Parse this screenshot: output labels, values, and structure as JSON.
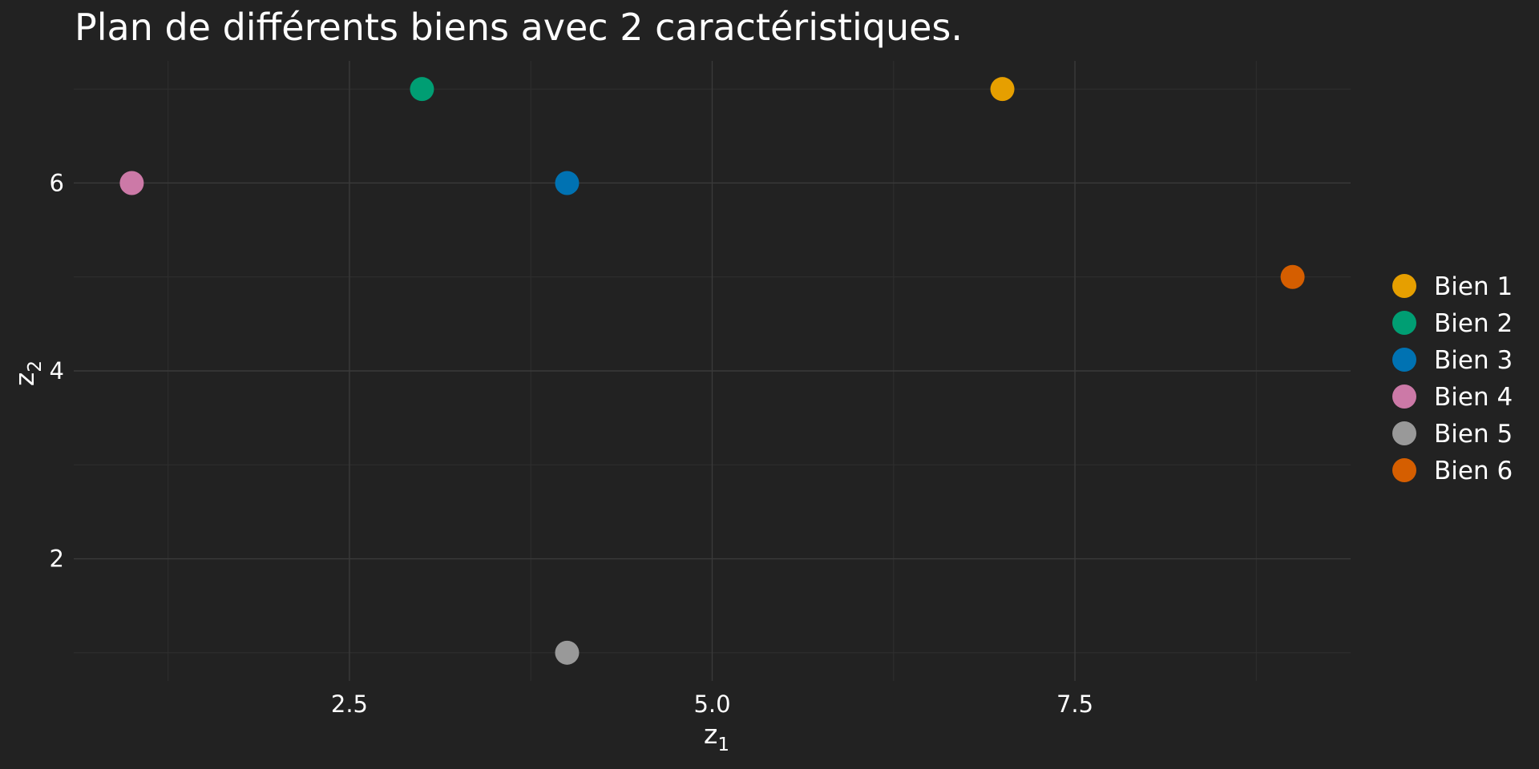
{
  "chart_data": {
    "type": "scatter",
    "title": "Plan de différents biens avec 2 caractéristiques.",
    "xlabel": {
      "base": "z",
      "sub": "1"
    },
    "ylabel": {
      "base": "z",
      "sub": "2"
    },
    "xlim": [
      0.6,
      9.4
    ],
    "ylim": [
      0.7,
      7.3
    ],
    "x_ticks": [
      2.5,
      5.0,
      7.5
    ],
    "x_tick_labels": [
      "2.5",
      "5.0",
      "7.5"
    ],
    "y_ticks": [
      2,
      4,
      6
    ],
    "y_tick_labels": [
      "2",
      "4",
      "6"
    ],
    "x_minor": [
      1.25,
      3.75,
      6.25,
      8.75
    ],
    "y_minor": [
      1,
      3,
      5,
      7
    ],
    "grid": true,
    "legend_position": "right",
    "series": [
      {
        "name": "Bien 1",
        "x": 7,
        "y": 7,
        "color": "#E69F00"
      },
      {
        "name": "Bien 2",
        "x": 3,
        "y": 7,
        "color": "#009E73"
      },
      {
        "name": "Bien 3",
        "x": 4,
        "y": 6,
        "color": "#0072B2"
      },
      {
        "name": "Bien 4",
        "x": 1,
        "y": 6,
        "color": "#CC79A7"
      },
      {
        "name": "Bien 5",
        "x": 4,
        "y": 1,
        "color": "#999999"
      },
      {
        "name": "Bien 6",
        "x": 9,
        "y": 5,
        "color": "#D55E00"
      }
    ]
  }
}
